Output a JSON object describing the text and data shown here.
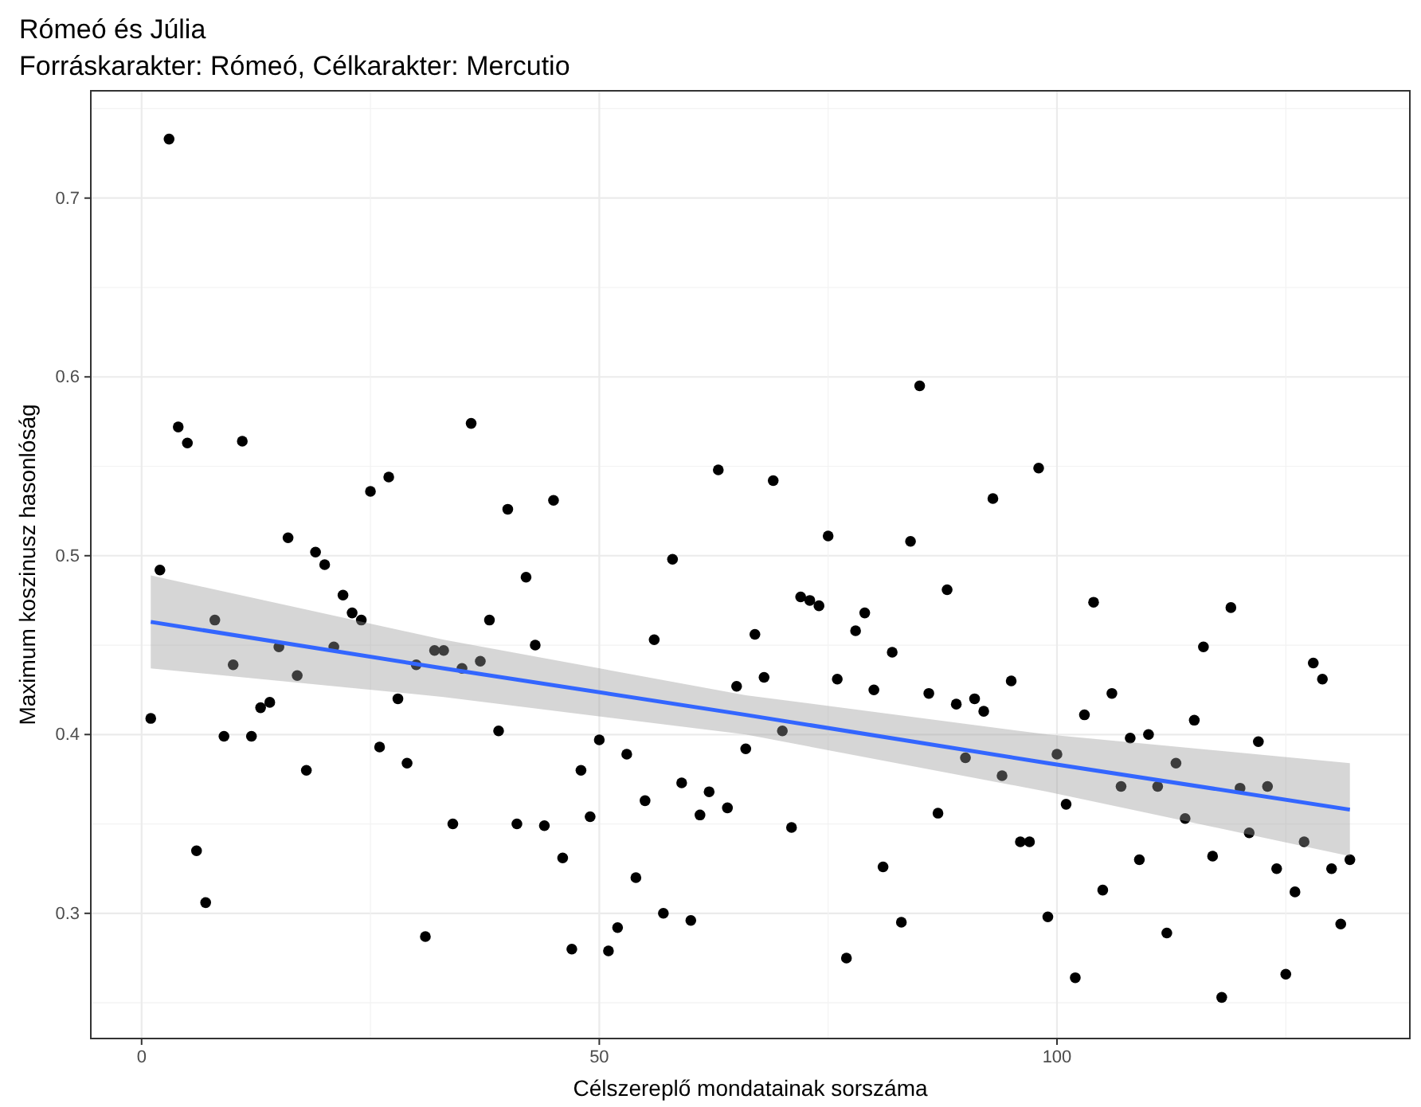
{
  "chart_data": {
    "type": "scatter",
    "title": "Rómeó és Júlia",
    "subtitle": "Forráskarakter: Rómeó, Célkarakter: Mercutio",
    "xlabel": "Célszereplő mondatainak sorszáma",
    "ylabel": "Maximum koszinusz hasonlóság",
    "xlim": [
      -5.55,
      138.55
    ],
    "xticks": [
      0,
      50,
      100
    ],
    "ylim": [
      0.23,
      0.76
    ],
    "yticks": [
      0.3,
      0.4,
      0.5,
      0.6,
      0.7
    ],
    "grid": true,
    "series": [
      {
        "marker": "circle",
        "color": "#000000",
        "x": [
          1,
          2,
          3,
          4,
          5,
          6,
          7,
          8,
          9,
          10,
          11,
          12,
          13,
          14,
          15,
          16,
          17,
          18,
          19,
          20,
          21,
          22,
          23,
          24,
          25,
          26,
          27,
          28,
          29,
          30,
          31,
          32,
          33,
          34,
          35,
          36,
          37,
          38,
          39,
          40,
          41,
          42,
          43,
          44,
          45,
          46,
          47,
          48,
          49,
          50,
          51,
          52,
          53,
          54,
          55,
          56,
          57,
          58,
          59,
          60,
          61,
          62,
          63,
          64,
          65,
          66,
          67,
          68,
          69,
          70,
          71,
          72,
          73,
          74,
          75,
          76,
          77,
          78,
          79,
          80,
          81,
          82,
          83,
          84,
          85,
          86,
          87,
          88,
          89,
          90,
          91,
          92,
          93,
          94,
          95,
          96,
          97,
          98,
          99,
          100,
          101,
          102,
          103,
          104,
          105,
          106,
          107,
          108,
          109,
          110,
          111,
          112,
          113,
          114,
          115,
          116,
          117,
          118,
          119,
          120,
          121,
          122,
          123,
          124,
          125,
          126,
          127,
          128,
          129,
          130,
          131,
          132
        ],
        "values": [
          0.409,
          0.492,
          0.733,
          0.572,
          0.563,
          0.335,
          0.306,
          0.464,
          0.399,
          0.439,
          0.564,
          0.399,
          0.415,
          0.418,
          0.449,
          0.51,
          0.433,
          0.38,
          0.502,
          0.495,
          0.449,
          0.478,
          0.468,
          0.464,
          0.536,
          0.393,
          0.544,
          0.42,
          0.384,
          0.439,
          0.287,
          0.447,
          0.447,
          0.35,
          0.437,
          0.574,
          0.441,
          0.464,
          0.402,
          0.526,
          0.35,
          0.488,
          0.45,
          0.349,
          0.531,
          0.331,
          0.28,
          0.38,
          0.354,
          0.397,
          0.279,
          0.292,
          0.389,
          0.32,
          0.363,
          0.453,
          0.3,
          0.498,
          0.373,
          0.296,
          0.355,
          0.368,
          0.548,
          0.359,
          0.427,
          0.392,
          0.456,
          0.432,
          0.542,
          0.402,
          0.348,
          0.477,
          0.475,
          0.472,
          0.511,
          0.431,
          0.275,
          0.458,
          0.468,
          0.425,
          0.326,
          0.446,
          0.295,
          0.508,
          0.595,
          0.423,
          0.356,
          0.481,
          0.417,
          0.387,
          0.42,
          0.413,
          0.532,
          0.377,
          0.43,
          0.34,
          0.34,
          0.549,
          0.298,
          0.389,
          0.361,
          0.264,
          0.411,
          0.474,
          0.313,
          0.423,
          0.371,
          0.398,
          0.33,
          0.4,
          0.371,
          0.289,
          0.384,
          0.353,
          0.408,
          0.449,
          0.332,
          0.253,
          0.471,
          0.37,
          0.345,
          0.396,
          0.371,
          0.325,
          0.266,
          0.312,
          0.34,
          0.44,
          0.431,
          0.325,
          0.294,
          0.33
        ]
      },
      {
        "type": "line",
        "color": "#3366ff",
        "x": [
          1,
          33,
          66,
          99,
          132
        ],
        "values": [
          0.463,
          0.437,
          0.411,
          0.384,
          0.358
        ],
        "lower": [
          0.437,
          0.421,
          0.4,
          0.368,
          0.332
        ],
        "upper": [
          0.489,
          0.453,
          0.422,
          0.4,
          0.384
        ]
      }
    ]
  }
}
